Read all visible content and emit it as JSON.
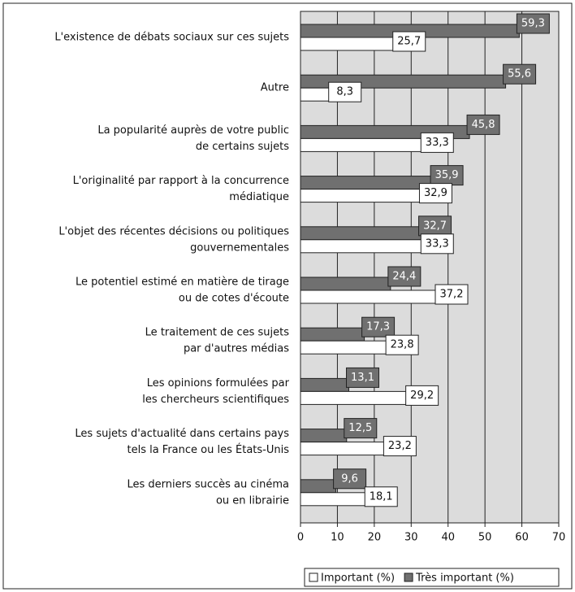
{
  "chart_data": {
    "type": "bar",
    "orientation": "horizontal",
    "categories": [
      [
        "L'existence de débats sociaux sur ces sujets"
      ],
      [
        "Autre"
      ],
      [
        "La popularité auprès de votre public",
        "de certains sujets"
      ],
      [
        "L'originalité par rapport à la concurrence",
        "médiatique"
      ],
      [
        "L'objet des récentes décisions ou politiques",
        "gouvernementales"
      ],
      [
        "Le potentiel estimé en matière de tirage",
        "ou de cotes d'écoute"
      ],
      [
        "Le traitement de ces sujets",
        "par d'autres médias"
      ],
      [
        "Les opinions formulées par",
        "les chercheurs scientifiques"
      ],
      [
        "Les sujets d'actualité dans certains pays",
        "tels la France ou les États-Unis"
      ],
      [
        "Les derniers succès au cinéma",
        "ou en librairie"
      ]
    ],
    "series": [
      {
        "name": "Important (%)",
        "color": "#ffffff",
        "values": [
          25.7,
          8.3,
          33.3,
          32.9,
          33.3,
          37.2,
          23.8,
          29.2,
          23.2,
          18.1
        ],
        "value_labels": [
          "25,7",
          "8,3",
          "33,3",
          "32,9",
          "33,3",
          "37,2",
          "23,8",
          "29,2",
          "23,2",
          "18,1"
        ]
      },
      {
        "name": "Très important (%)",
        "color": "#707070",
        "values": [
          59.3,
          55.6,
          45.8,
          35.9,
          32.7,
          24.4,
          17.3,
          13.1,
          12.5,
          9.6
        ],
        "value_labels": [
          "59,3",
          "55,6",
          "45,8",
          "35,9",
          "32,7",
          "24,4",
          "17,3",
          "13,1",
          "12,5",
          "9,6"
        ]
      }
    ],
    "xlim": [
      0,
      70
    ],
    "xticks": [
      0,
      10,
      20,
      30,
      40,
      50,
      60,
      70
    ],
    "grid": true
  }
}
